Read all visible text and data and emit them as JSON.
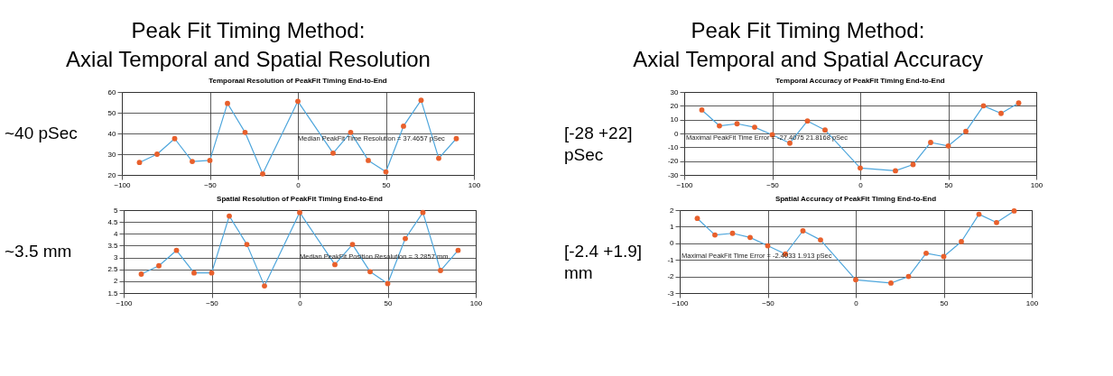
{
  "chart_data": [
    {
      "type": "line",
      "title": "Temporaal Resolution of PeakFit Timing End-to-End",
      "x": [
        -90,
        -80,
        -70,
        -60,
        -50,
        -40,
        -30,
        -20,
        0,
        20,
        30,
        40,
        50,
        60,
        70,
        80,
        90
      ],
      "xlim": [
        -100,
        100
      ],
      "xticks": [
        -100,
        -50,
        0,
        50,
        100
      ],
      "ylim": [
        20,
        60
      ],
      "yticks": [
        20,
        30,
        40,
        50,
        60
      ],
      "grid": true,
      "series": [
        {
          "color": "#4ea6dc",
          "marker": "none",
          "values": [
            26,
            30,
            37.5,
            26.5,
            27,
            54.5,
            40.5,
            20.5,
            55.5,
            30.5,
            40.5,
            27,
            21.5,
            43.5,
            56,
            28,
            37.5
          ]
        },
        {
          "type": "scatter",
          "marker": "circle",
          "color": "#e8602c",
          "values": [
            26,
            30,
            37.5,
            26.5,
            27,
            54.5,
            40.5,
            20.5,
            55.5,
            30.5,
            40.5,
            27,
            21.5,
            43.5,
            56,
            28,
            37.5
          ]
        }
      ],
      "annotations": [
        "Peak Fit Timing Method:\nAxial Temporal and Spatial Resolution",
        "~40 pSec",
        "Median PeakFit Time Resolution = 37.4657 pSec"
      ]
    },
    {
      "type": "line",
      "title": "Temporal Accuracy of PeakFit Timing End-to-End",
      "x": [
        -90,
        -80,
        -70,
        -60,
        -50,
        -40,
        -30,
        -20,
        0,
        20,
        30,
        40,
        50,
        60,
        70,
        80,
        90
      ],
      "xlim": [
        -100,
        100
      ],
      "xticks": [
        -100,
        -50,
        0,
        50,
        100
      ],
      "ylim": [
        -30,
        30
      ],
      "yticks": [
        -30,
        -20,
        -10,
        0,
        10,
        20,
        30
      ],
      "grid": true,
      "series": [
        {
          "color": "#4ea6dc",
          "marker": "none",
          "values": [
            17,
            5.5,
            7,
            4.5,
            -1,
            -7,
            9,
            2.5,
            -25,
            -27,
            -22.5,
            -6.5,
            -9,
            1.5,
            20,
            14.5,
            22
          ]
        },
        {
          "type": "scatter",
          "marker": "circle",
          "color": "#e8602c",
          "values": [
            17,
            5.5,
            7,
            4.5,
            -1,
            -7,
            9,
            2.5,
            -25,
            -27,
            -22.5,
            -6.5,
            -9,
            1.5,
            20,
            14.5,
            22
          ]
        }
      ],
      "annotations": [
        "Peak Fit Timing Method:\nAxial Temporal and Spatial Accuracy",
        "[-28 +22]\npSec",
        "Maximal PeakFit Time Error = -27.4075     21.8168 pSec"
      ]
    },
    {
      "type": "line",
      "title": "Spatial Resolution of PeakFit Timing End-to-End",
      "x": [
        -90,
        -80,
        -70,
        -60,
        -50,
        -40,
        -30,
        -20,
        0,
        20,
        30,
        40,
        50,
        60,
        70,
        80,
        90
      ],
      "xlim": [
        -100,
        100
      ],
      "xticks": [
        -100,
        -50,
        0,
        50,
        100
      ],
      "ylim": [
        1.5,
        5
      ],
      "yticks": [
        1.5,
        2,
        2.5,
        3,
        3.5,
        4,
        4.5,
        5
      ],
      "grid": true,
      "series": [
        {
          "color": "#4ea6dc",
          "marker": "none",
          "values": [
            2.3,
            2.65,
            3.3,
            2.35,
            2.35,
            4.75,
            3.55,
            1.8,
            4.9,
            2.7,
            3.55,
            2.4,
            1.9,
            3.8,
            4.9,
            2.45,
            3.3
          ]
        },
        {
          "type": "scatter",
          "marker": "circle",
          "color": "#e8602c",
          "values": [
            2.3,
            2.65,
            3.3,
            2.35,
            2.35,
            4.75,
            3.55,
            1.8,
            4.9,
            2.7,
            3.55,
            2.4,
            1.9,
            3.8,
            4.9,
            2.45,
            3.3
          ]
        }
      ],
      "annotations": [
        "~3.5 mm",
        "Median PeakFit Position Resolution = 3.2857 mm"
      ]
    },
    {
      "type": "line",
      "title": "Spatial Accuracy of PeakFit Timing End-to-End",
      "x": [
        -90,
        -80,
        -70,
        -60,
        -50,
        -40,
        -30,
        -20,
        0,
        20,
        30,
        40,
        50,
        60,
        70,
        80,
        90
      ],
      "xlim": [
        -100,
        100
      ],
      "xticks": [
        -100,
        -50,
        0,
        50,
        100
      ],
      "ylim": [
        -3,
        2
      ],
      "yticks": [
        -3,
        -2,
        -1,
        0,
        1,
        2
      ],
      "grid": true,
      "series": [
        {
          "color": "#4ea6dc",
          "marker": "none",
          "values": [
            1.5,
            0.5,
            0.6,
            0.35,
            -0.15,
            -0.65,
            0.75,
            0.2,
            -2.2,
            -2.4,
            -2,
            -0.6,
            -0.8,
            0.1,
            1.75,
            1.25,
            1.95
          ]
        },
        {
          "type": "scatter",
          "marker": "circle",
          "color": "#e8602c",
          "values": [
            1.5,
            0.5,
            0.6,
            0.35,
            -0.15,
            -0.65,
            0.75,
            0.2,
            -2.2,
            -2.4,
            -2,
            -0.6,
            -0.8,
            0.1,
            1.75,
            1.25,
            1.95
          ]
        }
      ],
      "annotations": [
        "[-2.4 +1.9]\nmm",
        "Maximal PeakFit Time Error = -2.4033     1.913 pSec"
      ]
    }
  ]
}
